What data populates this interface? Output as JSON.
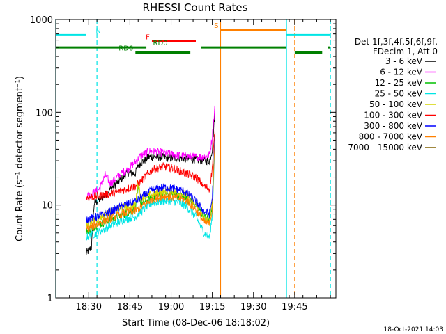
{
  "chart_data": {
    "type": "line",
    "title": "RHESSI Count Rates",
    "xlabel": "Start Time (08-Dec-06 18:18:02)",
    "ylabel": "Count Rate (s⁻¹ detector segment⁻¹)",
    "ylog": true,
    "xlim": [
      "18:18",
      "20:00"
    ],
    "ylim": [
      1,
      1000
    ],
    "x_ticks": [
      "18:30",
      "18:45",
      "19:00",
      "19:15",
      "19:30",
      "19:45"
    ],
    "y_ticks": [
      "1",
      "10",
      "100",
      "1000"
    ],
    "grid": false,
    "legend_position": "right",
    "legend_header": [
      "Det 1f,3f,4f,5f,6f,9f,",
      "FDecim 1, Att 0"
    ],
    "series": [
      {
        "name": "3 - 6 keV",
        "color": "#000000",
        "points": [
          [
            "18:29",
            3.0
          ],
          [
            "18:31",
            3.5
          ],
          [
            "18:32",
            10.5
          ],
          [
            "18:35",
            12
          ],
          [
            "18:38",
            15
          ],
          [
            "18:41",
            18
          ],
          [
            "18:44",
            22
          ],
          [
            "18:47",
            22
          ],
          [
            "18:48",
            27
          ],
          [
            "18:52",
            33
          ],
          [
            "18:56",
            33
          ],
          [
            "19:00",
            32
          ],
          [
            "19:04",
            32
          ],
          [
            "19:08",
            31
          ],
          [
            "19:12",
            30
          ],
          [
            "19:14",
            30
          ],
          [
            "19:15",
            40
          ],
          [
            "19:16",
            110
          ]
        ]
      },
      {
        "name": "6 - 12 keV",
        "color": "#ff00ff",
        "points": [
          [
            "18:29",
            12.5
          ],
          [
            "18:31",
            13
          ],
          [
            "18:34",
            15
          ],
          [
            "18:36",
            21
          ],
          [
            "18:38",
            17
          ],
          [
            "18:41",
            21
          ],
          [
            "18:44",
            24
          ],
          [
            "18:47",
            29
          ],
          [
            "18:49",
            34
          ],
          [
            "18:52",
            38
          ],
          [
            "18:56",
            37
          ],
          [
            "19:00",
            35
          ],
          [
            "19:04",
            34
          ],
          [
            "19:08",
            33
          ],
          [
            "19:12",
            33
          ],
          [
            "19:14",
            35
          ],
          [
            "19:15",
            55
          ],
          [
            "19:16",
            120
          ]
        ]
      },
      {
        "name": "12 - 25 keV",
        "color": "#00c000",
        "points": [
          [
            "18:29",
            5.2
          ],
          [
            "18:33",
            6
          ],
          [
            "18:38",
            7
          ],
          [
            "18:43",
            8
          ],
          [
            "18:47",
            9
          ],
          [
            "18:48",
            15
          ],
          [
            "18:49",
            10
          ],
          [
            "18:53",
            12
          ],
          [
            "18:57",
            13
          ],
          [
            "19:01",
            13
          ],
          [
            "19:05",
            12
          ],
          [
            "19:09",
            10
          ],
          [
            "19:12",
            7.5
          ],
          [
            "19:14",
            7
          ],
          [
            "19:15",
            10
          ],
          [
            "19:16",
            60
          ]
        ]
      },
      {
        "name": "25 - 50 keV",
        "color": "#00e5e5",
        "points": [
          [
            "18:29",
            4.5
          ],
          [
            "18:33",
            5
          ],
          [
            "18:38",
            6
          ],
          [
            "18:43",
            7
          ],
          [
            "18:47",
            7.5
          ],
          [
            "18:49",
            8.5
          ],
          [
            "18:53",
            10.5
          ],
          [
            "18:57",
            11
          ],
          [
            "19:01",
            11
          ],
          [
            "19:05",
            10
          ],
          [
            "19:09",
            7.5
          ],
          [
            "19:12",
            5
          ],
          [
            "19:14",
            4.5
          ],
          [
            "19:15",
            8
          ],
          [
            "19:16",
            50
          ]
        ]
      },
      {
        "name": "50 - 100 keV",
        "color": "#d4d400",
        "points": [
          [
            "18:29",
            6
          ],
          [
            "18:33",
            7
          ],
          [
            "18:38",
            8.5
          ],
          [
            "18:43",
            9.5
          ],
          [
            "18:47",
            10
          ],
          [
            "18:48",
            18
          ],
          [
            "18:49",
            12
          ],
          [
            "18:53",
            13
          ],
          [
            "18:57",
            14
          ],
          [
            "19:01",
            14
          ],
          [
            "19:05",
            13
          ],
          [
            "19:09",
            10
          ],
          [
            "19:12",
            7
          ],
          [
            "19:14",
            6.5
          ],
          [
            "19:15",
            10
          ],
          [
            "19:16",
            60
          ]
        ]
      },
      {
        "name": "100 - 300 keV",
        "color": "#ff0000",
        "points": [
          [
            "18:29",
            12
          ],
          [
            "18:33",
            12.5
          ],
          [
            "18:37",
            13
          ],
          [
            "18:41",
            14
          ],
          [
            "18:44",
            15
          ],
          [
            "18:47",
            16
          ],
          [
            "18:49",
            18
          ],
          [
            "18:53",
            24
          ],
          [
            "18:57",
            26
          ],
          [
            "19:01",
            25
          ],
          [
            "19:05",
            22
          ],
          [
            "19:09",
            20
          ],
          [
            "19:12",
            16
          ],
          [
            "19:14",
            15
          ],
          [
            "19:15",
            25
          ],
          [
            "19:16",
            70
          ]
        ]
      },
      {
        "name": "300 - 800 keV",
        "color": "#0000ff",
        "points": [
          [
            "18:29",
            7
          ],
          [
            "18:33",
            7.5
          ],
          [
            "18:38",
            8.5
          ],
          [
            "18:43",
            10
          ],
          [
            "18:47",
            11
          ],
          [
            "18:49",
            12
          ],
          [
            "18:53",
            14.5
          ],
          [
            "18:57",
            15.5
          ],
          [
            "19:01",
            15
          ],
          [
            "19:05",
            14
          ],
          [
            "19:09",
            11
          ],
          [
            "19:12",
            8.5
          ],
          [
            "19:14",
            8
          ],
          [
            "19:15",
            12
          ],
          [
            "19:16",
            60
          ]
        ]
      },
      {
        "name": "800 - 7000 keV",
        "color": "#ff8000",
        "points": [
          [
            "18:29",
            5.5
          ],
          [
            "18:33",
            6.2
          ],
          [
            "18:38",
            7.2
          ],
          [
            "18:43",
            8.2
          ],
          [
            "18:47",
            8.7
          ],
          [
            "18:49",
            9.5
          ],
          [
            "18:53",
            11.5
          ],
          [
            "18:57",
            12.5
          ],
          [
            "19:01",
            12
          ],
          [
            "19:05",
            11.5
          ],
          [
            "19:09",
            9
          ],
          [
            "19:12",
            6.5
          ],
          [
            "19:14",
            6.3
          ],
          [
            "19:15",
            9
          ],
          [
            "19:16",
            55
          ]
        ]
      },
      {
        "name": "7000 - 15000 keV",
        "color": "#806000",
        "points": []
      }
    ],
    "flag_bars": [
      {
        "label": "N",
        "color": "#00e5e5",
        "value": 680,
        "segments": [
          [
            "18:18",
            "18:29"
          ],
          [
            "19:42",
            "19:58"
          ]
        ]
      },
      {
        "label": "S",
        "color": "#ff8000",
        "value": 770,
        "segments": [
          [
            "19:18",
            "19:42"
          ]
        ]
      },
      {
        "label": "F",
        "color": "#ff0000",
        "value": 580,
        "segments": [
          [
            "18:53",
            "19:09"
          ]
        ]
      },
      {
        "label": "RD0",
        "color": "#008000",
        "value": 500,
        "segments": [
          [
            "18:18",
            "18:51"
          ],
          [
            "19:11",
            "19:42"
          ],
          [
            "19:57",
            "19:58"
          ]
        ]
      },
      {
        "label": "RD6",
        "color": "#008000",
        "value": 440,
        "segments": [
          [
            "18:47",
            "19:07"
          ],
          [
            "19:45",
            "19:55"
          ]
        ]
      }
    ],
    "vertical_markers": [
      {
        "x": "18:18",
        "color": "#00e5e5",
        "style": "solid"
      },
      {
        "x": "18:33",
        "color": "#00e5e5",
        "style": "dashed"
      },
      {
        "x": "19:18",
        "color": "#ff8000",
        "style": "solid"
      },
      {
        "x": "19:42",
        "color": "#00e5e5",
        "style": "solid"
      },
      {
        "x": "19:45",
        "color": "#ff8000",
        "style": "dashed"
      },
      {
        "x": "19:58",
        "color": "#00e5e5",
        "style": "dashed"
      }
    ]
  },
  "footer_timestamp": "18-Oct-2021 14:03"
}
